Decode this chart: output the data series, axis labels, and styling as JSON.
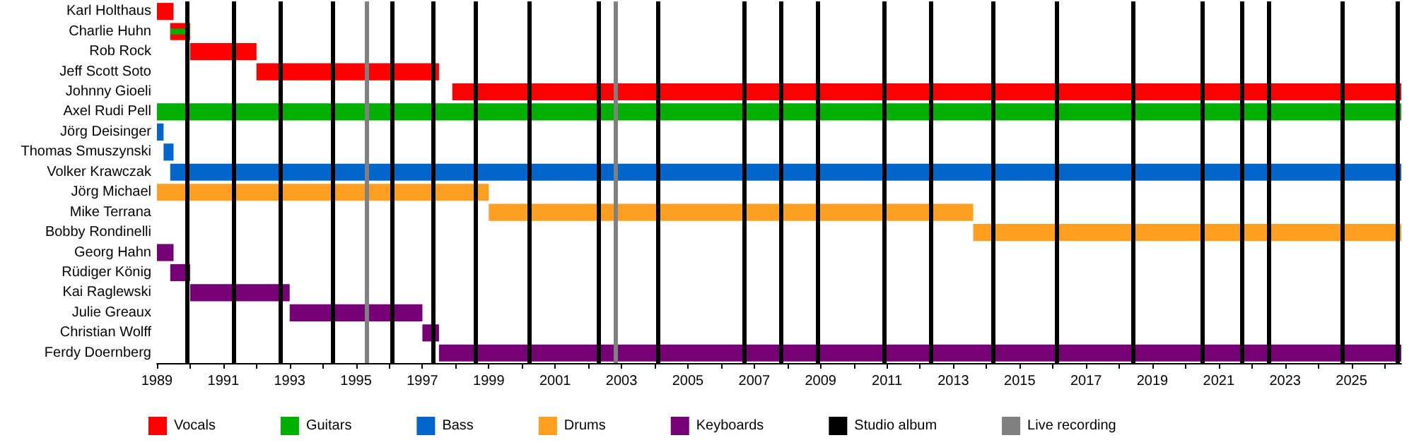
{
  "chart_data": {
    "type": "bar",
    "orientation": "horizontal",
    "categories": [
      "Karl Holthaus",
      "Charlie Huhn",
      "Rob Rock",
      "Jeff Scott Soto",
      "Johnny Gioeli",
      "Axel Rudi Pell",
      "Jörg Deisinger",
      "Thomas Smuszynski",
      "Volker Krawczak",
      "Jörg Michael",
      "Mike Terrana",
      "Bobby Rondinelli",
      "Georg Hahn",
      "Rüdiger König",
      "Kai Raglewski",
      "Julie Greaux",
      "Christian Wolff",
      "Ferdy Doernberg"
    ],
    "series": [
      {
        "name": "Vocals",
        "color": "#ff0000",
        "base": [
          1989,
          1989.4,
          1990.0,
          1992.0,
          1997.9,
          null,
          null,
          null,
          null,
          null,
          null,
          null,
          null,
          null,
          null,
          null,
          null,
          null
        ],
        "values": [
          0.5,
          0.6,
          2.0,
          5.5,
          28.6,
          null,
          null,
          null,
          null,
          null,
          null,
          null,
          null,
          null,
          null,
          null,
          null,
          null
        ]
      },
      {
        "name": "Guitars",
        "color": "#00b000",
        "base": [
          null,
          1989.4,
          null,
          null,
          null,
          1989,
          null,
          null,
          null,
          null,
          null,
          null,
          null,
          null,
          null,
          null,
          null,
          null
        ],
        "values": [
          null,
          0.6,
          null,
          null,
          null,
          37.5,
          null,
          null,
          null,
          null,
          null,
          null,
          null,
          null,
          null,
          null,
          null,
          null
        ]
      },
      {
        "name": "Bass",
        "color": "#0066cc",
        "base": [
          null,
          null,
          null,
          null,
          null,
          null,
          1989,
          1989.2,
          1989.4,
          null,
          null,
          null,
          null,
          null,
          null,
          null,
          null,
          null
        ],
        "values": [
          null,
          null,
          null,
          null,
          null,
          null,
          0.2,
          0.3,
          37.1,
          null,
          null,
          null,
          null,
          null,
          null,
          null,
          null,
          null
        ]
      },
      {
        "name": "Drums",
        "color": "#ff9f22",
        "base": [
          null,
          null,
          null,
          null,
          null,
          null,
          null,
          null,
          null,
          1989,
          1999.0,
          2013.6,
          null,
          null,
          null,
          null,
          null,
          null
        ],
        "values": [
          null,
          null,
          null,
          null,
          null,
          null,
          null,
          null,
          null,
          10.0,
          14.6,
          12.9,
          null,
          null,
          null,
          null,
          null,
          null
        ]
      },
      {
        "name": "Keyboards",
        "color": "#770077",
        "base": [
          null,
          null,
          null,
          null,
          null,
          null,
          null,
          null,
          null,
          null,
          null,
          null,
          1989,
          1989.4,
          1990.0,
          1993.0,
          1997.0,
          1997.5
        ],
        "values": [
          null,
          null,
          null,
          null,
          null,
          null,
          null,
          null,
          null,
          null,
          null,
          null,
          0.5,
          0.6,
          3.0,
          4.0,
          0.5,
          29.0
        ]
      }
    ],
    "xlim": [
      1989,
      2026.5
    ],
    "xticks": [
      1989,
      {
        "value": 1990,
        "label": null
      },
      1991,
      {
        "value": 1992,
        "label": null
      },
      1993,
      {
        "value": 1994,
        "label": null
      },
      1995,
      {
        "value": 1996,
        "label": null
      },
      1997,
      {
        "value": 1998,
        "label": null
      },
      1999,
      {
        "value": 2000,
        "label": null
      },
      2001,
      {
        "value": 2002,
        "label": null
      },
      2003,
      {
        "value": 2004,
        "label": null
      },
      2005,
      {
        "value": 2006,
        "label": null
      },
      2007,
      {
        "value": 2008,
        "label": null
      },
      2009,
      {
        "value": 2010,
        "label": null
      },
      2011,
      {
        "value": 2012,
        "label": null
      },
      2013,
      {
        "value": 2014,
        "label": null
      },
      2015,
      {
        "value": 2016,
        "label": null
      },
      2017,
      {
        "value": 2018,
        "label": null
      },
      2019,
      {
        "value": 2020,
        "label": null
      },
      2021,
      {
        "value": 2022,
        "label": null
      },
      2023,
      {
        "value": 2024,
        "label": null
      },
      2025,
      {
        "value": 2026,
        "label": null
      }
    ],
    "ref_lines": [
      {
        "axis": "x",
        "value": 1989.9,
        "label": "Studio album",
        "color": "#000000"
      },
      {
        "axis": "x",
        "value": 1991.3,
        "color": "#000000"
      },
      {
        "axis": "x",
        "value": 1992.7,
        "color": "#000000"
      },
      {
        "axis": "x",
        "value": 1994.3,
        "color": "#000000"
      },
      {
        "axis": "x",
        "value": 1995.3,
        "label": "Live recording",
        "color": "#808080"
      },
      {
        "axis": "x",
        "value": 1996.1,
        "color": "#000000"
      },
      {
        "axis": "x",
        "value": 1997.3,
        "color": "#000000"
      },
      {
        "axis": "x",
        "value": 1998.6,
        "color": "#000000"
      },
      {
        "axis": "x",
        "value": 2000.2,
        "color": "#000000"
      },
      {
        "axis": "x",
        "value": 2002.3,
        "color": "#000000"
      },
      {
        "axis": "x",
        "value": 2002.8,
        "color": "#808080"
      },
      {
        "axis": "x",
        "value": 2004.1,
        "color": "#000000"
      },
      {
        "axis": "x",
        "value": 2006.7,
        "color": "#000000"
      },
      {
        "axis": "x",
        "value": 2007.8,
        "color": "#000000"
      },
      {
        "axis": "x",
        "value": 2008.9,
        "color": "#000000"
      },
      {
        "axis": "x",
        "value": 2010.9,
        "color": "#000000"
      },
      {
        "axis": "x",
        "value": 2012.3,
        "color": "#000000"
      },
      {
        "axis": "x",
        "value": 2014.2,
        "color": "#000000"
      },
      {
        "axis": "x",
        "value": 2016.1,
        "color": "#000000"
      },
      {
        "axis": "x",
        "value": 2018.4,
        "color": "#000000"
      },
      {
        "axis": "x",
        "value": 2020.5,
        "color": "#000000"
      },
      {
        "axis": "x",
        "value": 2021.7,
        "color": "#000000"
      },
      {
        "axis": "x",
        "value": 2022.5,
        "color": "#000000"
      },
      {
        "axis": "x",
        "value": 2024.7,
        "color": "#000000"
      },
      {
        "axis": "x",
        "value": 2026.4,
        "color": "#000000"
      }
    ],
    "legend": "bottom"
  }
}
